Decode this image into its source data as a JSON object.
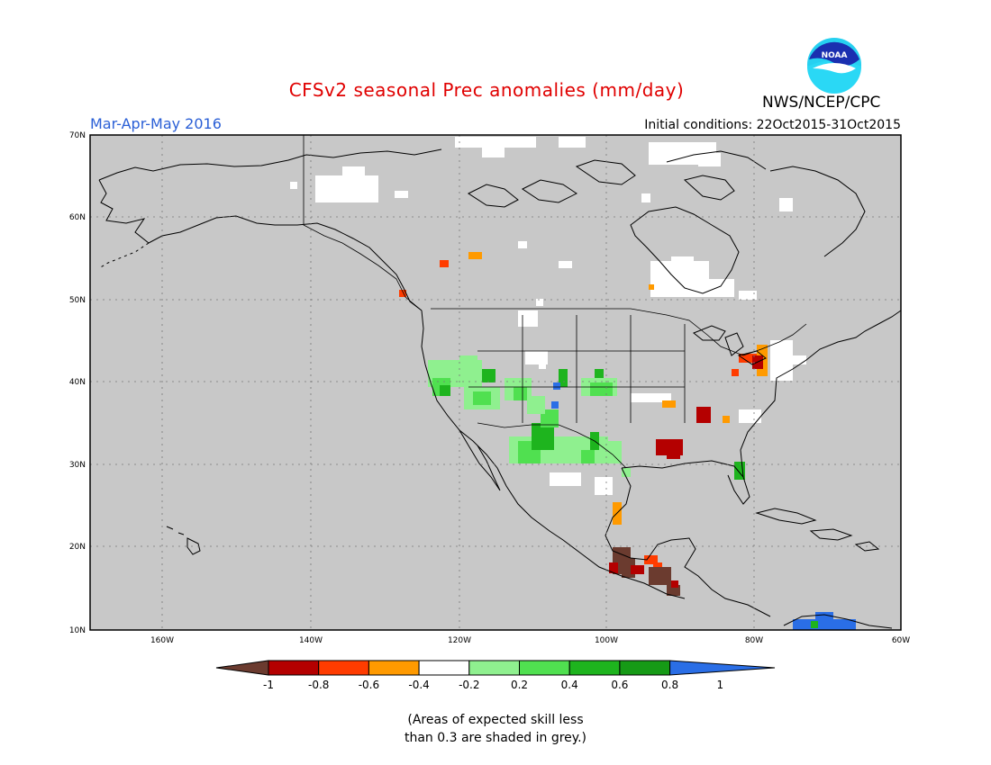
{
  "title": "CFSv2 seasonal Prec anomalies (mm/day)",
  "season": "Mar-Apr-May 2016",
  "initial_conditions": "Initial conditions: 22Oct2015-31Oct2015",
  "agency": "NWS/NCEP/CPC",
  "logo_text": "NOAA",
  "note_lines": [
    "(Areas of expected skill less",
    "than 0.3 are shaded in grey.)"
  ],
  "map": {
    "lon_labels": [
      "160W",
      "140W",
      "120W",
      "100W",
      "80W",
      "60W"
    ],
    "lat_labels": [
      "70N",
      "60N",
      "50N",
      "40N",
      "30N",
      "20N",
      "10N"
    ],
    "background_color": "#c8c8c8"
  },
  "colorbar": {
    "labels": [
      "-1",
      "-0.8",
      "-0.6",
      "-0.4",
      "-0.2",
      "0.2",
      "0.4",
      "0.6",
      "0.8",
      "1"
    ],
    "colors": [
      "#6b3b2f",
      "#b40000",
      "#ff3c00",
      "#ff9a00",
      "#ffffff",
      "#8ff08f",
      "#50e050",
      "#1eb41e",
      "#169a16",
      "#2a6ee6"
    ]
  }
}
